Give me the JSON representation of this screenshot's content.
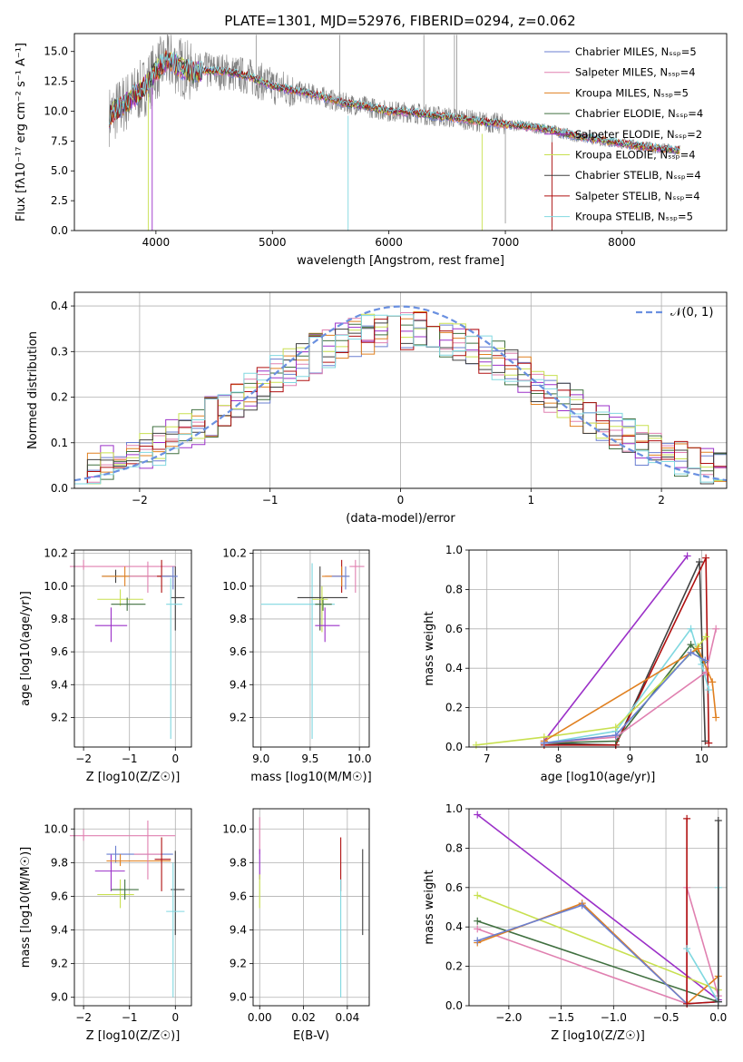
{
  "figure_title": "PLATE=1301, MJD=52976, FIBERID=0294, z=0.062",
  "colors": {
    "chabrier_miles": "#6a7fd0",
    "salpeter_miles": "#e080b0",
    "kroupa_miles": "#e08020",
    "chabrier_elodie": "#407040",
    "salpeter_elodie": "#9b30c8",
    "kroupa_elodie": "#c8e050",
    "chabrier_stelib": "#404040",
    "salpeter_stelib": "#b01010",
    "kroupa_stelib": "#80d8e0",
    "data": "#808080",
    "normal": "#6a90e0"
  },
  "chart_data": [
    {
      "id": "spectrum",
      "type": "line",
      "xlabel": "wavelength [Angstrom, rest frame]",
      "ylabel": "Flux [fλ10⁻¹⁷ erg cm⁻² s⁻¹ A⁻¹]",
      "xlim": [
        3300,
        8900
      ],
      "ylim": [
        0,
        16.5
      ],
      "xticks": [
        "4000",
        "5000",
        "6000",
        "7000",
        "8000"
      ],
      "yticks": [
        "0.0",
        "2.5",
        "5.0",
        "7.5",
        "10.0",
        "12.5",
        "15.0"
      ],
      "legend_position": "upper-right",
      "legend": [
        "Chabrier MILES, N_SSP=5",
        "Salpeter MILES, N_SSP=4",
        "Kroupa MILES, N_SSP=5",
        "Chabrier ELODIE, N_SSP=4",
        "Salpeter ELODIE, N_SSP=2",
        "Kroupa ELODIE, N_SSP=4",
        "Chabrier STELIB, N_SSP=4",
        "Salpeter STELIB, N_SSP=4",
        "Kroupa STELIB, N_SSP=5"
      ],
      "continuum": {
        "x": [
          3600,
          3700,
          3800,
          3900,
          4000,
          4100,
          4200,
          4300,
          4400,
          4600,
          4800,
          5000,
          5200,
          5400,
          5600,
          5800,
          6000,
          6200,
          6400,
          6600,
          6800,
          7000,
          7200,
          7400,
          7600,
          7800,
          8000,
          8200,
          8400,
          8500
        ],
        "y": [
          9.6,
          10.4,
          11.2,
          12.0,
          13.4,
          14.2,
          13.8,
          13.2,
          13.4,
          13.3,
          12.9,
          12.1,
          11.7,
          11.3,
          10.7,
          10.4,
          10.0,
          9.9,
          9.6,
          9.4,
          9.1,
          8.9,
          8.7,
          8.4,
          7.9,
          7.6,
          7.3,
          7.0,
          6.8,
          6.7
        ]
      }
    },
    {
      "id": "residuals",
      "type": "bar",
      "xlabel": "(data-model)/error",
      "ylabel": "Normed distribution",
      "xlim": [
        -2.5,
        2.5
      ],
      "ylim": [
        0,
        0.43
      ],
      "xticks": [
        "−2",
        "−1",
        "0",
        "1",
        "2"
      ],
      "yticks": [
        "0.0",
        "0.1",
        "0.2",
        "0.3",
        "0.4"
      ],
      "legend": [
        "𝒩(0, 1)"
      ],
      "legend_position": "upper-right",
      "bin_width": 0.1
    },
    {
      "id": "age_vs_Z",
      "type": "scatter",
      "xlabel": "Z [log10(Z/Z☉)]",
      "ylabel": "age  [log10(age/yr)]",
      "xlim": [
        -2.2,
        0.35
      ],
      "ylim": [
        9.02,
        10.22
      ],
      "xticks": [
        "−2",
        "−1",
        "0"
      ],
      "yticks": [
        "9.2",
        "9.4",
        "9.6",
        "9.8",
        "10.0",
        "10.2"
      ],
      "points": [
        {
          "x": -2.0,
          "y": 10.12,
          "xlo": -2.3,
          "xhi": 0.0,
          "ylo": 10.1,
          "yhi": 10.16,
          "c": "salpeter_miles"
        },
        {
          "x": -1.4,
          "y": 9.76,
          "xlo": -1.75,
          "xhi": -1.05,
          "ylo": 9.66,
          "yhi": 9.87,
          "c": "salpeter_elodie"
        },
        {
          "x": -1.3,
          "y": 10.06,
          "xlo": -1.6,
          "xhi": -0.05,
          "ylo": 10.02,
          "yhi": 10.1,
          "c": "chabrier_stelib"
        },
        {
          "x": -1.1,
          "y": 10.06,
          "xlo": -1.6,
          "xhi": -0.05,
          "ylo": 10.0,
          "yhi": 10.12,
          "c": "kroupa_miles"
        },
        {
          "x": -1.2,
          "y": 9.92,
          "xlo": -1.7,
          "xhi": -0.7,
          "ylo": 9.88,
          "yhi": 9.98,
          "c": "kroupa_elodie"
        },
        {
          "x": -1.05,
          "y": 9.89,
          "xlo": -1.4,
          "xhi": -0.65,
          "ylo": 9.85,
          "yhi": 9.93,
          "c": "chabrier_elodie"
        },
        {
          "x": -0.6,
          "y": 10.06,
          "xlo": -1.0,
          "xhi": -0.3,
          "ylo": 9.96,
          "yhi": 10.15,
          "c": "salpeter_miles"
        },
        {
          "x": -0.3,
          "y": 10.06,
          "xlo": -0.4,
          "xhi": -0.1,
          "ylo": 9.96,
          "yhi": 10.16,
          "c": "salpeter_stelib"
        },
        {
          "x": 0.0,
          "y": 9.93,
          "xlo": -0.1,
          "xhi": 0.2,
          "ylo": 9.73,
          "yhi": 10.12,
          "c": "chabrier_stelib"
        },
        {
          "x": -0.05,
          "y": 10.06,
          "xlo": -0.3,
          "xhi": 0.05,
          "ylo": 9.98,
          "yhi": 10.12,
          "c": "chabrier_miles"
        },
        {
          "x": -0.1,
          "y": 9.89,
          "xlo": -0.2,
          "xhi": 0.15,
          "ylo": 9.07,
          "yhi": 10.05,
          "c": "kroupa_stelib"
        }
      ]
    },
    {
      "id": "age_vs_mass",
      "type": "scatter",
      "xlabel": "mass [log10(M/M☉)]",
      "ylabel": "",
      "xlim": [
        8.92,
        10.1
      ],
      "ylim": [
        9.02,
        10.22
      ],
      "xticks": [
        "9.0",
        "9.5",
        "10.0"
      ],
      "yticks": [
        "9.2",
        "9.4",
        "9.6",
        "9.8",
        "10.0",
        "10.2"
      ],
      "points": [
        {
          "x": 9.52,
          "y": 9.89,
          "xlo": 9.0,
          "xhi": 9.75,
          "ylo": 9.07,
          "yhi": 10.14,
          "c": "kroupa_stelib"
        },
        {
          "x": 9.6,
          "y": 9.93,
          "xlo": 9.37,
          "xhi": 9.88,
          "ylo": 9.73,
          "yhi": 10.12,
          "c": "chabrier_stelib"
        },
        {
          "x": 9.63,
          "y": 9.89,
          "xlo": 9.55,
          "xhi": 9.72,
          "ylo": 9.85,
          "yhi": 9.93,
          "c": "chabrier_elodie"
        },
        {
          "x": 9.62,
          "y": 9.92,
          "xlo": 9.52,
          "xhi": 9.68,
          "ylo": 9.72,
          "yhi": 10.0,
          "c": "kroupa_elodie"
        },
        {
          "x": 9.65,
          "y": 9.76,
          "xlo": 9.55,
          "xhi": 9.8,
          "ylo": 9.66,
          "yhi": 9.87,
          "c": "salpeter_elodie"
        },
        {
          "x": 9.82,
          "y": 10.06,
          "xlo": 9.65,
          "xhi": 9.85,
          "ylo": 9.96,
          "yhi": 10.16,
          "c": "salpeter_stelib"
        },
        {
          "x": 9.82,
          "y": 10.06,
          "xlo": 9.62,
          "xhi": 9.9,
          "ylo": 10.0,
          "yhi": 10.12,
          "c": "kroupa_miles"
        },
        {
          "x": 9.86,
          "y": 10.06,
          "xlo": 9.72,
          "xhi": 9.9,
          "ylo": 9.98,
          "yhi": 10.12,
          "c": "chabrier_miles"
        },
        {
          "x": 9.96,
          "y": 10.12,
          "xlo": 9.9,
          "xhi": 10.05,
          "ylo": 9.96,
          "yhi": 10.16,
          "c": "salpeter_miles"
        }
      ]
    },
    {
      "id": "weight_vs_age",
      "type": "line",
      "xlabel": "age  [log10(age/yr)]",
      "ylabel": "mass weight",
      "xlim": [
        6.75,
        10.35
      ],
      "ylim": [
        0,
        1.0
      ],
      "xticks": [
        "7",
        "8",
        "9",
        "10"
      ],
      "yticks": [
        "0.0",
        "0.2",
        "0.4",
        "0.6",
        "0.8",
        "1.0"
      ],
      "series": [
        {
          "c": "salpeter_elodie",
          "x": [
            7.8,
            9.8
          ],
          "y": [
            0.03,
            0.97
          ]
        },
        {
          "c": "chabrier_stelib",
          "x": [
            7.8,
            8.8,
            9.97,
            10.05
          ],
          "y": [
            0.02,
            0.01,
            0.94,
            0.03
          ]
        },
        {
          "c": "salpeter_stelib",
          "x": [
            7.8,
            8.8,
            10.06,
            10.1
          ],
          "y": [
            0.01,
            0.01,
            0.96,
            0.02
          ]
        },
        {
          "c": "kroupa_stelib",
          "x": [
            7.8,
            8.8,
            9.85,
            10.0,
            10.1
          ],
          "y": [
            0.02,
            0.08,
            0.6,
            0.42,
            0.29
          ]
        },
        {
          "c": "chabrier_elodie",
          "x": [
            7.8,
            8.8,
            9.85,
            10.05
          ],
          "y": [
            0.02,
            0.03,
            0.52,
            0.43
          ]
        },
        {
          "c": "salpeter_miles",
          "x": [
            7.8,
            8.8,
            10.06,
            10.2
          ],
          "y": [
            0.02,
            0.05,
            0.38,
            0.6
          ]
        },
        {
          "c": "kroupa_elodie",
          "x": [
            6.85,
            7.8,
            8.8,
            9.95,
            10.06
          ],
          "y": [
            0.01,
            0.05,
            0.1,
            0.51,
            0.56
          ]
        },
        {
          "c": "kroupa_miles",
          "x": [
            7.8,
            9.95,
            10.15,
            10.2
          ],
          "y": [
            0.03,
            0.5,
            0.33,
            0.15
          ]
        },
        {
          "c": "chabrier_miles",
          "x": [
            7.8,
            8.8,
            9.85,
            10.05
          ],
          "y": [
            0.02,
            0.06,
            0.48,
            0.44
          ]
        }
      ]
    },
    {
      "id": "mass_vs_Z",
      "type": "scatter",
      "xlabel": "Z [log10(Z/Z☉)]",
      "ylabel": "mass [log10(M/M☉)]",
      "xlim": [
        -2.2,
        0.35
      ],
      "ylim": [
        8.95,
        10.12
      ],
      "xticks": [
        "−2",
        "−1",
        "0"
      ],
      "yticks": [
        "9.0",
        "9.2",
        "9.4",
        "9.6",
        "9.8",
        "10.0"
      ],
      "points": [
        {
          "x": -2.0,
          "y": 9.96,
          "xlo": -2.3,
          "xhi": 0.0,
          "ylo": 9.93,
          "yhi": 10.0,
          "c": "salpeter_miles"
        },
        {
          "x": -1.4,
          "y": 9.75,
          "xlo": -1.75,
          "xhi": -1.1,
          "ylo": 9.63,
          "yhi": 9.85,
          "c": "salpeter_elodie"
        },
        {
          "x": -1.3,
          "y": 9.85,
          "xlo": -1.5,
          "xhi": -0.05,
          "ylo": 9.8,
          "yhi": 9.9,
          "c": "chabrier_miles"
        },
        {
          "x": -1.2,
          "y": 9.81,
          "xlo": -1.5,
          "xhi": -0.1,
          "ylo": 9.78,
          "yhi": 9.85,
          "c": "kroupa_miles"
        },
        {
          "x": -1.2,
          "y": 9.61,
          "xlo": -1.7,
          "xhi": -0.9,
          "ylo": 9.53,
          "yhi": 9.7,
          "c": "kroupa_elodie"
        },
        {
          "x": -1.1,
          "y": 9.64,
          "xlo": -1.4,
          "xhi": -0.8,
          "ylo": 9.58,
          "yhi": 9.7,
          "c": "chabrier_elodie"
        },
        {
          "x": -0.6,
          "y": 9.85,
          "xlo": -0.9,
          "xhi": -0.3,
          "ylo": 9.7,
          "yhi": 10.05,
          "c": "salpeter_miles"
        },
        {
          "x": -0.3,
          "y": 9.82,
          "xlo": -0.45,
          "xhi": -0.1,
          "ylo": 9.63,
          "yhi": 9.95,
          "c": "salpeter_stelib"
        },
        {
          "x": 0.0,
          "y": 9.64,
          "xlo": -0.1,
          "xhi": 0.2,
          "ylo": 9.37,
          "yhi": 9.87,
          "c": "chabrier_stelib"
        },
        {
          "x": -0.05,
          "y": 9.51,
          "xlo": -0.2,
          "xhi": 0.2,
          "ylo": 9.0,
          "yhi": 9.8,
          "c": "kroupa_stelib"
        }
      ]
    },
    {
      "id": "mass_vs_ebv",
      "type": "scatter",
      "xlabel": "E(B-V)",
      "ylabel": "",
      "xlim": [
        -0.003,
        0.05
      ],
      "ylim": [
        8.95,
        10.12
      ],
      "xticks": [
        "0.00",
        "0.02",
        "0.04"
      ],
      "yticks": [
        "9.0",
        "9.2",
        "9.4",
        "9.6",
        "9.8",
        "10.0"
      ],
      "points": [
        {
          "x": 0.0,
          "y": 9.96,
          "ylo": 9.85,
          "yhi": 10.07,
          "c": "salpeter_miles"
        },
        {
          "x": 0.0,
          "y": 9.75,
          "ylo": 9.7,
          "yhi": 9.88,
          "c": "salpeter_elodie"
        },
        {
          "x": 0.0,
          "y": 9.62,
          "ylo": 9.53,
          "yhi": 9.73,
          "c": "kroupa_elodie"
        },
        {
          "x": 0.037,
          "y": 9.82,
          "ylo": 9.63,
          "yhi": 9.95,
          "c": "salpeter_stelib"
        },
        {
          "x": 0.037,
          "y": 9.51,
          "ylo": 9.0,
          "yhi": 9.7,
          "c": "kroupa_stelib"
        },
        {
          "x": 0.047,
          "y": 9.64,
          "ylo": 9.37,
          "yhi": 9.88,
          "c": "chabrier_stelib"
        }
      ]
    },
    {
      "id": "weight_vs_Z",
      "type": "line",
      "xlabel": "Z [log10(Z/Z☉)]",
      "ylabel": "mass weight",
      "xlim": [
        -2.38,
        0.08
      ],
      "ylim": [
        0,
        1.0
      ],
      "xticks": [
        "−2.0",
        "−1.5",
        "−1.0",
        "−0.5",
        "0.0"
      ],
      "yticks": [
        "0.0",
        "0.2",
        "0.4",
        "0.6",
        "0.8",
        "1.0"
      ],
      "series": [
        {
          "c": "salpeter_elodie",
          "x": [
            -2.3,
            0.0
          ],
          "y": [
            0.97,
            0.03
          ]
        },
        {
          "c": "kroupa_elodie",
          "x": [
            -2.3,
            0.0
          ],
          "y": [
            0.56,
            0.08
          ]
        },
        {
          "c": "chabrier_elodie",
          "x": [
            -2.3,
            0.0
          ],
          "y": [
            0.43,
            0.02
          ]
        },
        {
          "c": "salpeter_miles",
          "x": [
            -2.3,
            -0.3,
            -0.3,
            0.0
          ],
          "y": [
            0.39,
            0.01,
            0.6,
            0.05
          ]
        },
        {
          "c": "kroupa_miles",
          "x": [
            -2.3,
            -1.3,
            -0.3,
            0.0
          ],
          "y": [
            0.32,
            0.52,
            0.01,
            0.15
          ]
        },
        {
          "c": "chabrier_miles",
          "x": [
            -2.3,
            -1.3,
            -0.3,
            0.0
          ],
          "y": [
            0.33,
            0.51,
            0.01,
            0.02
          ]
        },
        {
          "c": "salpeter_stelib",
          "x": [
            -0.3,
            -0.3,
            0.0
          ],
          "y": [
            0.95,
            0.01,
            0.02
          ]
        },
        {
          "c": "kroupa_stelib",
          "x": [
            -0.3,
            0.0,
            0.0
          ],
          "y": [
            0.29,
            0.02,
            0.6
          ]
        },
        {
          "c": "chabrier_stelib",
          "x": [
            0.0,
            0.0
          ],
          "y": [
            0.02,
            0.94
          ]
        }
      ]
    }
  ]
}
